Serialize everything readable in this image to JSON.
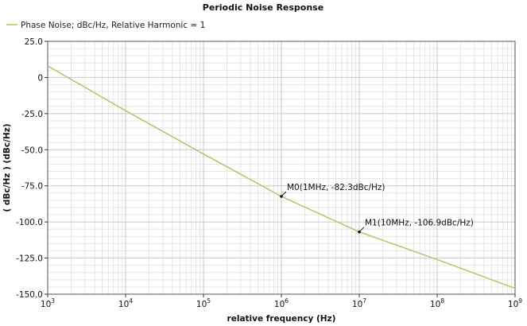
{
  "chart_data": {
    "type": "line",
    "title": "Periodic Noise Response",
    "legend": {
      "placement": "top-left",
      "entries": [
        "Phase Noise; dBc/Hz, Relative Harmonic = 1"
      ]
    },
    "xlabel": "relative frequency (Hz)",
    "ylabel": "( dBc/Hz ) (dBc/Hz)",
    "x_scale": "log",
    "xlim": [
      1000,
      1000000000
    ],
    "ylim": [
      -150,
      25
    ],
    "grid": true,
    "x_ticks": [
      {
        "base": "10",
        "exp": "3"
      },
      {
        "base": "10",
        "exp": "4"
      },
      {
        "base": "10",
        "exp": "5"
      },
      {
        "base": "10",
        "exp": "6"
      },
      {
        "base": "10",
        "exp": "7"
      },
      {
        "base": "10",
        "exp": "8"
      },
      {
        "base": "10",
        "exp": "9"
      }
    ],
    "y_ticks": [
      "25.0",
      "0",
      "-25.0",
      "-50.0",
      "-75.0",
      "-100.0",
      "-125.0",
      "-150.0"
    ],
    "series": [
      {
        "name": "Phase Noise; dBc/Hz, Relative Harmonic = 1",
        "color": "#b3c46a",
        "x": [
          1000,
          10000,
          100000,
          1000000,
          10000000,
          100000000,
          1000000000
        ],
        "y": [
          8,
          -23,
          -53,
          -82.3,
          -106.9,
          -126,
          -146
        ]
      }
    ],
    "annotations": [
      {
        "label": "M0(1MHz, -82.3dBc/Hz)",
        "x": 1000000,
        "y": -82.3
      },
      {
        "label": "M1(10MHz, -106.9dBc/Hz)",
        "x": 10000000,
        "y": -106.9
      }
    ]
  }
}
